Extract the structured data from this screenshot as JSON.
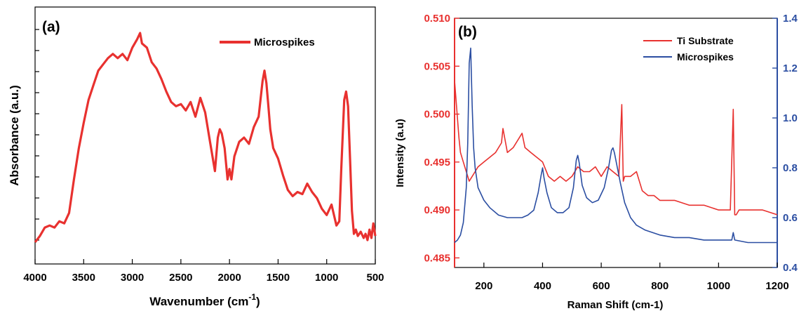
{
  "chart_data": [
    {
      "type": "line",
      "panel_label": "(a)",
      "xlabel": "Wavenumber (cm",
      "xlabel_sup": "-1",
      "xlabel_suffix": ")",
      "ylabel": "Absorbance (a.u.)",
      "xlim": [
        4000,
        500
      ],
      "x_reversed": true,
      "x_ticks": [
        "4000",
        "3500",
        "3000",
        "2500",
        "2000",
        "1500",
        "1000",
        "500"
      ],
      "y_tick_labels_shown": false,
      "legend": {
        "position": "top-right",
        "entries": [
          "Microspikes"
        ]
      },
      "series": [
        {
          "name": "Microspikes",
          "color": "#e8312f",
          "x": [
            4000,
            3950,
            3900,
            3850,
            3800,
            3750,
            3700,
            3650,
            3600,
            3550,
            3500,
            3450,
            3400,
            3350,
            3300,
            3250,
            3200,
            3150,
            3100,
            3050,
            3000,
            2950,
            2920,
            2900,
            2850,
            2800,
            2750,
            2700,
            2650,
            2600,
            2550,
            2500,
            2450,
            2400,
            2350,
            2300,
            2250,
            2200,
            2150,
            2120,
            2100,
            2080,
            2050,
            2020,
            2000,
            1980,
            1950,
            1900,
            1850,
            1800,
            1750,
            1700,
            1660,
            1640,
            1620,
            1600,
            1580,
            1550,
            1500,
            1450,
            1400,
            1350,
            1300,
            1250,
            1200,
            1150,
            1100,
            1050,
            1000,
            950,
            900,
            870,
            850,
            820,
            800,
            780,
            760,
            740,
            720,
            700,
            680,
            650,
            620,
            600,
            580,
            560,
            540,
            520,
            500
          ],
          "y": [
            0.0,
            0.03,
            0.07,
            0.08,
            0.07,
            0.1,
            0.09,
            0.14,
            0.3,
            0.45,
            0.57,
            0.68,
            0.75,
            0.82,
            0.85,
            0.88,
            0.9,
            0.88,
            0.9,
            0.87,
            0.93,
            0.97,
            1.0,
            0.95,
            0.93,
            0.86,
            0.83,
            0.78,
            0.72,
            0.67,
            0.65,
            0.66,
            0.63,
            0.67,
            0.6,
            0.69,
            0.62,
            0.48,
            0.34,
            0.5,
            0.54,
            0.52,
            0.45,
            0.3,
            0.35,
            0.3,
            0.41,
            0.48,
            0.5,
            0.47,
            0.55,
            0.6,
            0.77,
            0.82,
            0.76,
            0.65,
            0.54,
            0.45,
            0.4,
            0.32,
            0.25,
            0.22,
            0.24,
            0.23,
            0.28,
            0.24,
            0.21,
            0.16,
            0.13,
            0.18,
            0.08,
            0.1,
            0.35,
            0.68,
            0.72,
            0.65,
            0.4,
            0.15,
            0.04,
            0.06,
            0.03,
            0.05,
            0.02,
            0.04,
            0.01,
            0.06,
            0.02,
            0.09,
            0.03
          ]
        }
      ]
    },
    {
      "type": "line",
      "panel_label": "(b)",
      "xlabel": "Raman Shift (cm-1)",
      "ylabel": "Intensity (a.u)",
      "xlim": [
        100,
        1200
      ],
      "ylim": [
        0.484,
        0.51
      ],
      "y2lim": [
        0.4,
        1.4
      ],
      "x_ticks": [
        "200",
        "400",
        "600",
        "800",
        "1000",
        "1200"
      ],
      "y_ticks": [
        "0.485",
        "0.490",
        "0.495",
        "0.500",
        "0.505",
        "0.510"
      ],
      "y2_ticks": [
        "0.4",
        "0.6",
        "0.8",
        "1.0",
        "1.2",
        "1.4"
      ],
      "legend": {
        "position": "top-right",
        "entries": [
          "Ti Substrate",
          "Microspikes"
        ]
      },
      "series": [
        {
          "name": "Ti Substrate",
          "axis": "left",
          "color": "#e8312f",
          "x": [
            100,
            105,
            110,
            115,
            120,
            130,
            140,
            150,
            160,
            170,
            180,
            200,
            220,
            240,
            260,
            265,
            280,
            300,
            320,
            330,
            340,
            360,
            380,
            400,
            420,
            440,
            460,
            480,
            500,
            520,
            540,
            560,
            580,
            600,
            620,
            640,
            660,
            670,
            675,
            680,
            700,
            720,
            740,
            760,
            780,
            800,
            850,
            900,
            950,
            1000,
            1040,
            1050,
            1055,
            1060,
            1070,
            1100,
            1150,
            1200
          ],
          "y": [
            0.5035,
            0.5015,
            0.4995,
            0.4975,
            0.496,
            0.495,
            0.494,
            0.493,
            0.4935,
            0.494,
            0.4945,
            0.495,
            0.4955,
            0.496,
            0.497,
            0.4985,
            0.496,
            0.4965,
            0.4975,
            0.498,
            0.4965,
            0.496,
            0.4955,
            0.495,
            0.4935,
            0.493,
            0.4935,
            0.493,
            0.4935,
            0.4945,
            0.494,
            0.494,
            0.4945,
            0.4935,
            0.4945,
            0.494,
            0.4935,
            0.501,
            0.493,
            0.4935,
            0.4935,
            0.494,
            0.492,
            0.4915,
            0.4915,
            0.491,
            0.491,
            0.4905,
            0.4905,
            0.49,
            0.49,
            0.5005,
            0.4895,
            0.4895,
            0.49,
            0.49,
            0.49,
            0.4895
          ]
        },
        {
          "name": "Microspikes",
          "axis": "right",
          "color": "#2b4ea2",
          "x": [
            100,
            110,
            120,
            130,
            140,
            145,
            150,
            155,
            160,
            165,
            170,
            180,
            200,
            220,
            250,
            280,
            300,
            330,
            350,
            370,
            385,
            395,
            400,
            405,
            415,
            430,
            450,
            470,
            490,
            505,
            515,
            520,
            525,
            535,
            550,
            570,
            590,
            610,
            625,
            635,
            640,
            645,
            655,
            665,
            680,
            700,
            720,
            750,
            800,
            850,
            900,
            950,
            1000,
            1045,
            1050,
            1055,
            1100,
            1150,
            1200
          ],
          "y": [
            0.5,
            0.51,
            0.53,
            0.58,
            0.72,
            0.9,
            1.22,
            1.28,
            1.05,
            0.88,
            0.8,
            0.72,
            0.67,
            0.64,
            0.61,
            0.6,
            0.6,
            0.6,
            0.61,
            0.63,
            0.7,
            0.77,
            0.8,
            0.76,
            0.7,
            0.64,
            0.62,
            0.62,
            0.64,
            0.72,
            0.83,
            0.85,
            0.82,
            0.73,
            0.68,
            0.66,
            0.67,
            0.72,
            0.8,
            0.87,
            0.88,
            0.86,
            0.8,
            0.74,
            0.66,
            0.6,
            0.57,
            0.55,
            0.53,
            0.52,
            0.52,
            0.51,
            0.51,
            0.51,
            0.54,
            0.51,
            0.5,
            0.5,
            0.5
          ]
        }
      ]
    }
  ]
}
